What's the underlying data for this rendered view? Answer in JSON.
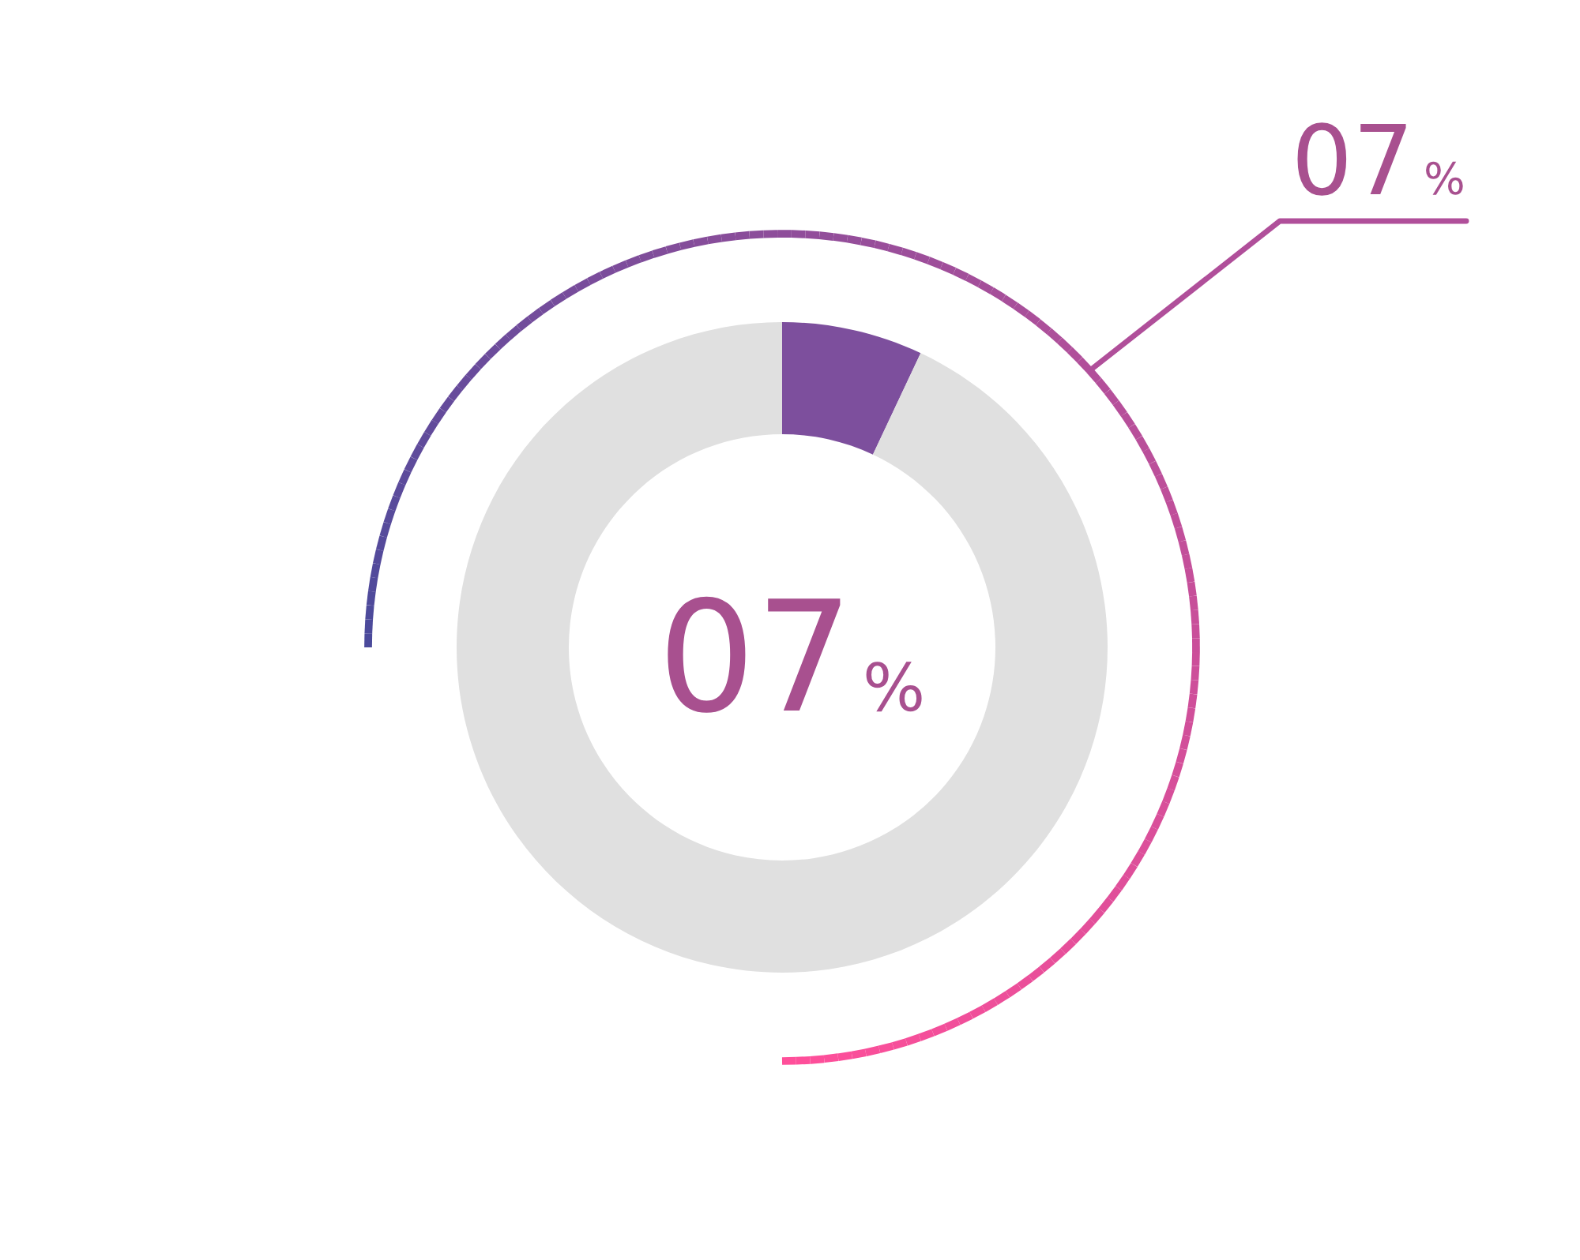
{
  "chart_data": {
    "type": "donut",
    "categories": [
      null,
      null
    ],
    "values": [
      7,
      93
    ],
    "colors": [
      "#7d4f9d",
      "#e0e0e0"
    ],
    "annotations": [
      "07 %",
      "07 %"
    ]
  }
}
